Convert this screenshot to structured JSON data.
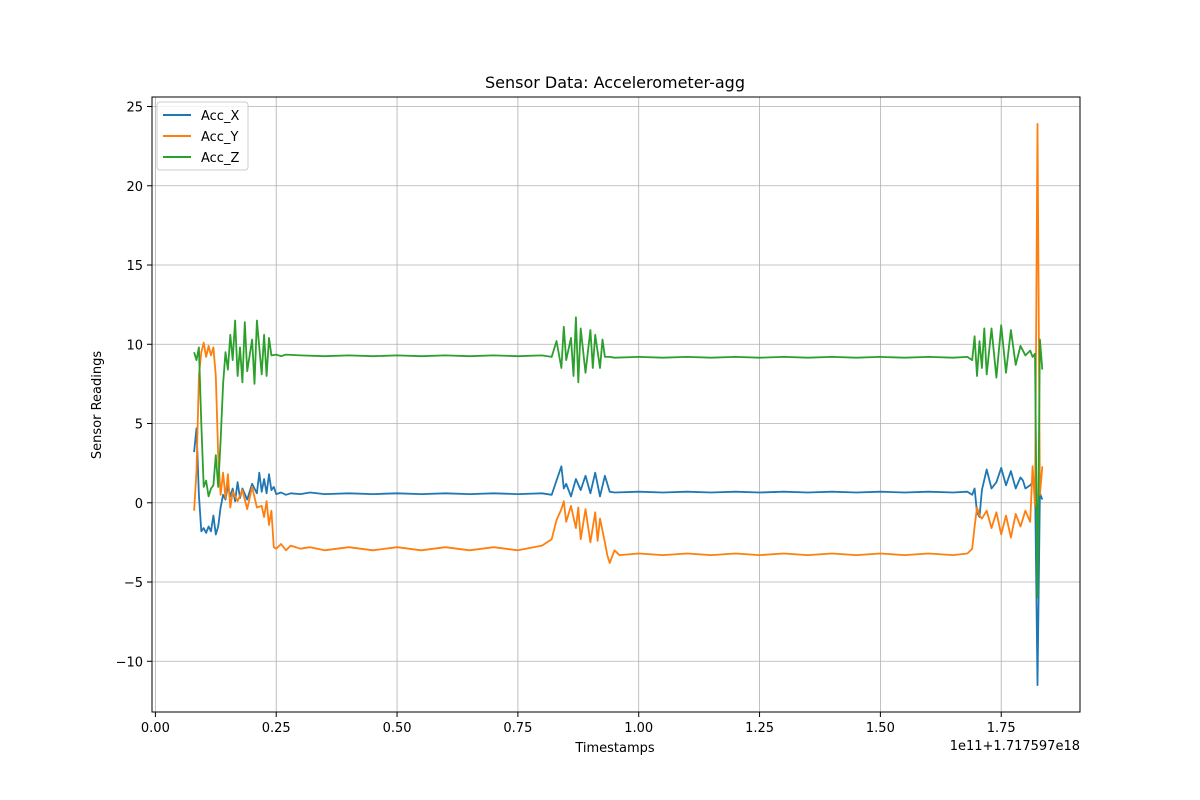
{
  "chart_data": {
    "type": "line",
    "title": "Sensor Data: Accelerometer-agg",
    "xlabel": "Timestamps",
    "ylabel": "Sensor Readings",
    "x_offset_label": "1e11+1.717597e18",
    "xlim": [
      -0.007,
      1.913
    ],
    "ylim": [
      -13.2,
      25.6
    ],
    "x_ticks": [
      0.0,
      0.25,
      0.5,
      0.75,
      1.0,
      1.25,
      1.5,
      1.75
    ],
    "x_tick_labels": [
      "0.00",
      "0.25",
      "0.50",
      "0.75",
      "1.00",
      "1.25",
      "1.50",
      "1.75"
    ],
    "y_ticks": [
      -10,
      -5,
      0,
      5,
      10,
      15,
      20,
      25
    ],
    "y_tick_labels": [
      "−10",
      "−5",
      "0",
      "5",
      "10",
      "15",
      "20",
      "25"
    ],
    "grid": true,
    "legend_position": "top-left",
    "series": [
      {
        "name": "Acc_X",
        "color": "#1f77b4",
        "points": [
          [
            0.08,
            3.2
          ],
          [
            0.085,
            4.7
          ],
          [
            0.09,
            0.5
          ],
          [
            0.095,
            -1.8
          ],
          [
            0.1,
            -1.6
          ],
          [
            0.105,
            -1.9
          ],
          [
            0.11,
            -1.5
          ],
          [
            0.115,
            -1.8
          ],
          [
            0.12,
            -0.8
          ],
          [
            0.125,
            -2.0
          ],
          [
            0.13,
            -1.5
          ],
          [
            0.135,
            -0.3
          ],
          [
            0.14,
            0.5
          ],
          [
            0.145,
            0.2
          ],
          [
            0.15,
            1.1
          ],
          [
            0.155,
            0.4
          ],
          [
            0.16,
            0.9
          ],
          [
            0.165,
            0.1
          ],
          [
            0.17,
            1.3
          ],
          [
            0.175,
            0.3
          ],
          [
            0.18,
            0.9
          ],
          [
            0.19,
            0.2
          ],
          [
            0.2,
            1.2
          ],
          [
            0.21,
            0.6
          ],
          [
            0.215,
            1.9
          ],
          [
            0.22,
            0.7
          ],
          [
            0.225,
            1.5
          ],
          [
            0.23,
            0.6
          ],
          [
            0.235,
            1.8
          ],
          [
            0.24,
            0.8
          ],
          [
            0.245,
            1.0
          ],
          [
            0.25,
            0.55
          ],
          [
            0.26,
            0.65
          ],
          [
            0.27,
            0.5
          ],
          [
            0.28,
            0.6
          ],
          [
            0.3,
            0.55
          ],
          [
            0.32,
            0.65
          ],
          [
            0.35,
            0.55
          ],
          [
            0.4,
            0.6
          ],
          [
            0.45,
            0.55
          ],
          [
            0.5,
            0.6
          ],
          [
            0.55,
            0.55
          ],
          [
            0.6,
            0.6
          ],
          [
            0.65,
            0.55
          ],
          [
            0.7,
            0.6
          ],
          [
            0.75,
            0.55
          ],
          [
            0.8,
            0.6
          ],
          [
            0.82,
            0.5
          ],
          [
            0.83,
            1.4
          ],
          [
            0.84,
            2.3
          ],
          [
            0.845,
            0.9
          ],
          [
            0.85,
            1.2
          ],
          [
            0.86,
            0.4
          ],
          [
            0.87,
            1.5
          ],
          [
            0.88,
            0.8
          ],
          [
            0.89,
            1.7
          ],
          [
            0.9,
            0.6
          ],
          [
            0.91,
            1.9
          ],
          [
            0.92,
            0.4
          ],
          [
            0.93,
            1.7
          ],
          [
            0.94,
            0.7
          ],
          [
            0.95,
            0.65
          ],
          [
            1.0,
            0.7
          ],
          [
            1.05,
            0.65
          ],
          [
            1.1,
            0.7
          ],
          [
            1.15,
            0.65
          ],
          [
            1.2,
            0.7
          ],
          [
            1.25,
            0.65
          ],
          [
            1.3,
            0.7
          ],
          [
            1.35,
            0.65
          ],
          [
            1.4,
            0.7
          ],
          [
            1.45,
            0.65
          ],
          [
            1.5,
            0.7
          ],
          [
            1.55,
            0.65
          ],
          [
            1.6,
            0.7
          ],
          [
            1.65,
            0.65
          ],
          [
            1.68,
            0.7
          ],
          [
            1.69,
            0.5
          ],
          [
            1.695,
            0.9
          ],
          [
            1.7,
            -0.6
          ],
          [
            1.705,
            -0.9
          ],
          [
            1.71,
            0.8
          ],
          [
            1.72,
            2.1
          ],
          [
            1.73,
            0.9
          ],
          [
            1.74,
            1.3
          ],
          [
            1.75,
            2.2
          ],
          [
            1.76,
            1.1
          ],
          [
            1.77,
            2.0
          ],
          [
            1.78,
            0.9
          ],
          [
            1.79,
            1.6
          ],
          [
            1.795,
            1.4
          ],
          [
            1.8,
            0.9
          ],
          [
            1.81,
            1.1
          ],
          [
            1.82,
            1.5
          ],
          [
            1.825,
            -11.5
          ],
          [
            1.83,
            0.6
          ],
          [
            1.835,
            0.2
          ]
        ]
      },
      {
        "name": "Acc_Y",
        "color": "#ff7f0e",
        "points": [
          [
            0.08,
            -0.5
          ],
          [
            0.085,
            2.0
          ],
          [
            0.09,
            8.0
          ],
          [
            0.095,
            9.5
          ],
          [
            0.1,
            10.1
          ],
          [
            0.105,
            9.2
          ],
          [
            0.11,
            9.9
          ],
          [
            0.115,
            9.3
          ],
          [
            0.12,
            9.8
          ],
          [
            0.125,
            8.0
          ],
          [
            0.13,
            3.0
          ],
          [
            0.135,
            0.5
          ],
          [
            0.14,
            1.9
          ],
          [
            0.145,
            0.3
          ],
          [
            0.15,
            1.8
          ],
          [
            0.155,
            -0.3
          ],
          [
            0.16,
            0.7
          ],
          [
            0.17,
            0.1
          ],
          [
            0.18,
            0.8
          ],
          [
            0.19,
            -0.4
          ],
          [
            0.2,
            1.0
          ],
          [
            0.21,
            -0.3
          ],
          [
            0.22,
            -0.2
          ],
          [
            0.225,
            -0.9
          ],
          [
            0.23,
            0.1
          ],
          [
            0.235,
            -1.4
          ],
          [
            0.24,
            -0.5
          ],
          [
            0.245,
            -2.8
          ],
          [
            0.25,
            -2.9
          ],
          [
            0.26,
            -2.6
          ],
          [
            0.27,
            -3.0
          ],
          [
            0.28,
            -2.7
          ],
          [
            0.3,
            -2.9
          ],
          [
            0.32,
            -2.8
          ],
          [
            0.35,
            -3.0
          ],
          [
            0.4,
            -2.8
          ],
          [
            0.45,
            -3.0
          ],
          [
            0.5,
            -2.8
          ],
          [
            0.55,
            -3.0
          ],
          [
            0.6,
            -2.8
          ],
          [
            0.65,
            -3.0
          ],
          [
            0.7,
            -2.8
          ],
          [
            0.75,
            -3.0
          ],
          [
            0.8,
            -2.7
          ],
          [
            0.82,
            -2.3
          ],
          [
            0.83,
            -1.1
          ],
          [
            0.84,
            -0.4
          ],
          [
            0.845,
            0.1
          ],
          [
            0.85,
            -1.2
          ],
          [
            0.86,
            -0.2
          ],
          [
            0.87,
            -1.6
          ],
          [
            0.875,
            -0.3
          ],
          [
            0.88,
            -2.3
          ],
          [
            0.89,
            -0.4
          ],
          [
            0.9,
            -2.5
          ],
          [
            0.91,
            -0.6
          ],
          [
            0.915,
            -2.4
          ],
          [
            0.92,
            -1.0
          ],
          [
            0.93,
            -2.5
          ],
          [
            0.935,
            -3.3
          ],
          [
            0.94,
            -3.8
          ],
          [
            0.95,
            -3.0
          ],
          [
            0.96,
            -3.3
          ],
          [
            1.0,
            -3.2
          ],
          [
            1.05,
            -3.3
          ],
          [
            1.1,
            -3.2
          ],
          [
            1.15,
            -3.3
          ],
          [
            1.2,
            -3.2
          ],
          [
            1.25,
            -3.3
          ],
          [
            1.3,
            -3.2
          ],
          [
            1.35,
            -3.3
          ],
          [
            1.4,
            -3.2
          ],
          [
            1.45,
            -3.3
          ],
          [
            1.5,
            -3.2
          ],
          [
            1.55,
            -3.3
          ],
          [
            1.6,
            -3.2
          ],
          [
            1.65,
            -3.3
          ],
          [
            1.68,
            -3.2
          ],
          [
            1.69,
            -2.9
          ],
          [
            1.695,
            -1.5
          ],
          [
            1.7,
            -0.3
          ],
          [
            1.705,
            -0.8
          ],
          [
            1.71,
            -1.0
          ],
          [
            1.72,
            -0.5
          ],
          [
            1.73,
            -1.6
          ],
          [
            1.74,
            -0.6
          ],
          [
            1.75,
            -2.0
          ],
          [
            1.76,
            -0.8
          ],
          [
            1.77,
            -2.2
          ],
          [
            1.78,
            -0.7
          ],
          [
            1.79,
            -1.5
          ],
          [
            1.8,
            -0.5
          ],
          [
            1.81,
            -1.2
          ],
          [
            1.815,
            2.3
          ],
          [
            1.82,
            -0.2
          ],
          [
            1.825,
            23.9
          ],
          [
            1.83,
            0.5
          ],
          [
            1.835,
            2.3
          ]
        ]
      },
      {
        "name": "Acc_Z",
        "color": "#2ca02c",
        "points": [
          [
            0.08,
            9.5
          ],
          [
            0.085,
            9.0
          ],
          [
            0.09,
            9.8
          ],
          [
            0.095,
            5.0
          ],
          [
            0.1,
            1.0
          ],
          [
            0.105,
            1.4
          ],
          [
            0.11,
            0.4
          ],
          [
            0.115,
            0.9
          ],
          [
            0.12,
            1.1
          ],
          [
            0.125,
            3.0
          ],
          [
            0.13,
            1.0
          ],
          [
            0.135,
            3.9
          ],
          [
            0.14,
            7.5
          ],
          [
            0.145,
            9.5
          ],
          [
            0.15,
            8.4
          ],
          [
            0.155,
            10.6
          ],
          [
            0.16,
            9.0
          ],
          [
            0.165,
            11.5
          ],
          [
            0.17,
            8.0
          ],
          [
            0.175,
            9.8
          ],
          [
            0.18,
            7.6
          ],
          [
            0.185,
            11.4
          ],
          [
            0.19,
            8.3
          ],
          [
            0.2,
            10.3
          ],
          [
            0.205,
            7.5
          ],
          [
            0.21,
            11.5
          ],
          [
            0.22,
            8.1
          ],
          [
            0.225,
            10.6
          ],
          [
            0.23,
            8.0
          ],
          [
            0.235,
            10.4
          ],
          [
            0.24,
            9.3
          ],
          [
            0.25,
            9.35
          ],
          [
            0.26,
            9.25
          ],
          [
            0.27,
            9.35
          ],
          [
            0.3,
            9.3
          ],
          [
            0.35,
            9.25
          ],
          [
            0.4,
            9.3
          ],
          [
            0.45,
            9.25
          ],
          [
            0.5,
            9.3
          ],
          [
            0.55,
            9.25
          ],
          [
            0.6,
            9.3
          ],
          [
            0.65,
            9.25
          ],
          [
            0.7,
            9.3
          ],
          [
            0.75,
            9.25
          ],
          [
            0.8,
            9.3
          ],
          [
            0.82,
            9.2
          ],
          [
            0.83,
            10.2
          ],
          [
            0.84,
            8.5
          ],
          [
            0.845,
            11.1
          ],
          [
            0.85,
            9.0
          ],
          [
            0.86,
            10.4
          ],
          [
            0.865,
            8.0
          ],
          [
            0.87,
            11.7
          ],
          [
            0.875,
            7.6
          ],
          [
            0.88,
            11.0
          ],
          [
            0.89,
            8.2
          ],
          [
            0.9,
            10.9
          ],
          [
            0.905,
            8.5
          ],
          [
            0.91,
            10.6
          ],
          [
            0.92,
            8.5
          ],
          [
            0.925,
            10.3
          ],
          [
            0.93,
            9.2
          ],
          [
            0.94,
            9.2
          ],
          [
            0.95,
            9.15
          ],
          [
            1.0,
            9.2
          ],
          [
            1.05,
            9.15
          ],
          [
            1.1,
            9.2
          ],
          [
            1.15,
            9.15
          ],
          [
            1.2,
            9.2
          ],
          [
            1.25,
            9.15
          ],
          [
            1.3,
            9.2
          ],
          [
            1.35,
            9.15
          ],
          [
            1.4,
            9.2
          ],
          [
            1.45,
            9.15
          ],
          [
            1.5,
            9.2
          ],
          [
            1.55,
            9.15
          ],
          [
            1.6,
            9.2
          ],
          [
            1.65,
            9.15
          ],
          [
            1.68,
            9.2
          ],
          [
            1.69,
            9.0
          ],
          [
            1.695,
            10.5
          ],
          [
            1.7,
            8.0
          ],
          [
            1.705,
            10.2
          ],
          [
            1.71,
            8.5
          ],
          [
            1.715,
            11.0
          ],
          [
            1.72,
            8.1
          ],
          [
            1.73,
            11.0
          ],
          [
            1.74,
            7.9
          ],
          [
            1.75,
            11.2
          ],
          [
            1.76,
            8.2
          ],
          [
            1.77,
            10.9
          ],
          [
            1.78,
            8.7
          ],
          [
            1.79,
            9.9
          ],
          [
            1.8,
            9.3
          ],
          [
            1.81,
            9.6
          ],
          [
            1.815,
            9.2
          ],
          [
            1.82,
            9.4
          ],
          [
            1.825,
            -6.0
          ],
          [
            1.83,
            10.3
          ],
          [
            1.835,
            8.4
          ]
        ]
      }
    ]
  }
}
